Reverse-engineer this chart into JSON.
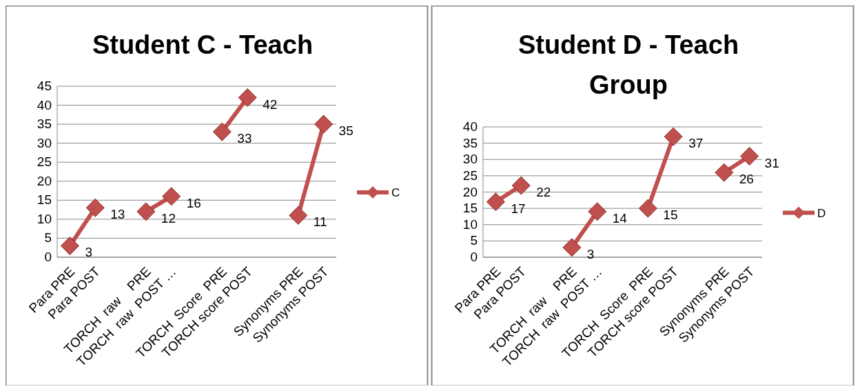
{
  "chart_data": [
    {
      "type": "line",
      "title": "Student C - Teach",
      "categories": [
        "Para PRE",
        "Para POST",
        null,
        "TORCH  raw    PRE",
        "TORCH  raw  POST …",
        null,
        "TORCH  Score  PRE",
        "TORCH score POST",
        null,
        "Synonyms PRE",
        "Synonyms POST"
      ],
      "series": [
        {
          "name": "C",
          "color": "#c0504d",
          "values": [
            3,
            13,
            null,
            12,
            16,
            null,
            33,
            42,
            null,
            11,
            35
          ]
        }
      ],
      "ylim": [
        0,
        45
      ],
      "yticks": [
        0,
        5,
        10,
        15,
        20,
        25,
        30,
        35,
        40,
        45
      ],
      "grid": "y",
      "legend": "right",
      "marker": "diamond",
      "data_labels": true
    },
    {
      "type": "line",
      "title": "Student D - Teach Group",
      "categories": [
        "Para PRE",
        "Para POST",
        null,
        "TORCH  raw    PRE",
        "TORCH  raw  POST …",
        null,
        "TORCH  Score  PRE",
        "TORCH score POST",
        null,
        "Synonyms PRE",
        "Synonyms POST"
      ],
      "series": [
        {
          "name": "D",
          "color": "#c0504d",
          "values": [
            17,
            22,
            null,
            3,
            14,
            null,
            15,
            37,
            null,
            26,
            31
          ]
        }
      ],
      "ylim": [
        0,
        40
      ],
      "yticks": [
        0,
        5,
        10,
        15,
        20,
        25,
        30,
        35,
        40
      ],
      "grid": "y",
      "legend": "right",
      "marker": "diamond",
      "data_labels": true
    }
  ]
}
